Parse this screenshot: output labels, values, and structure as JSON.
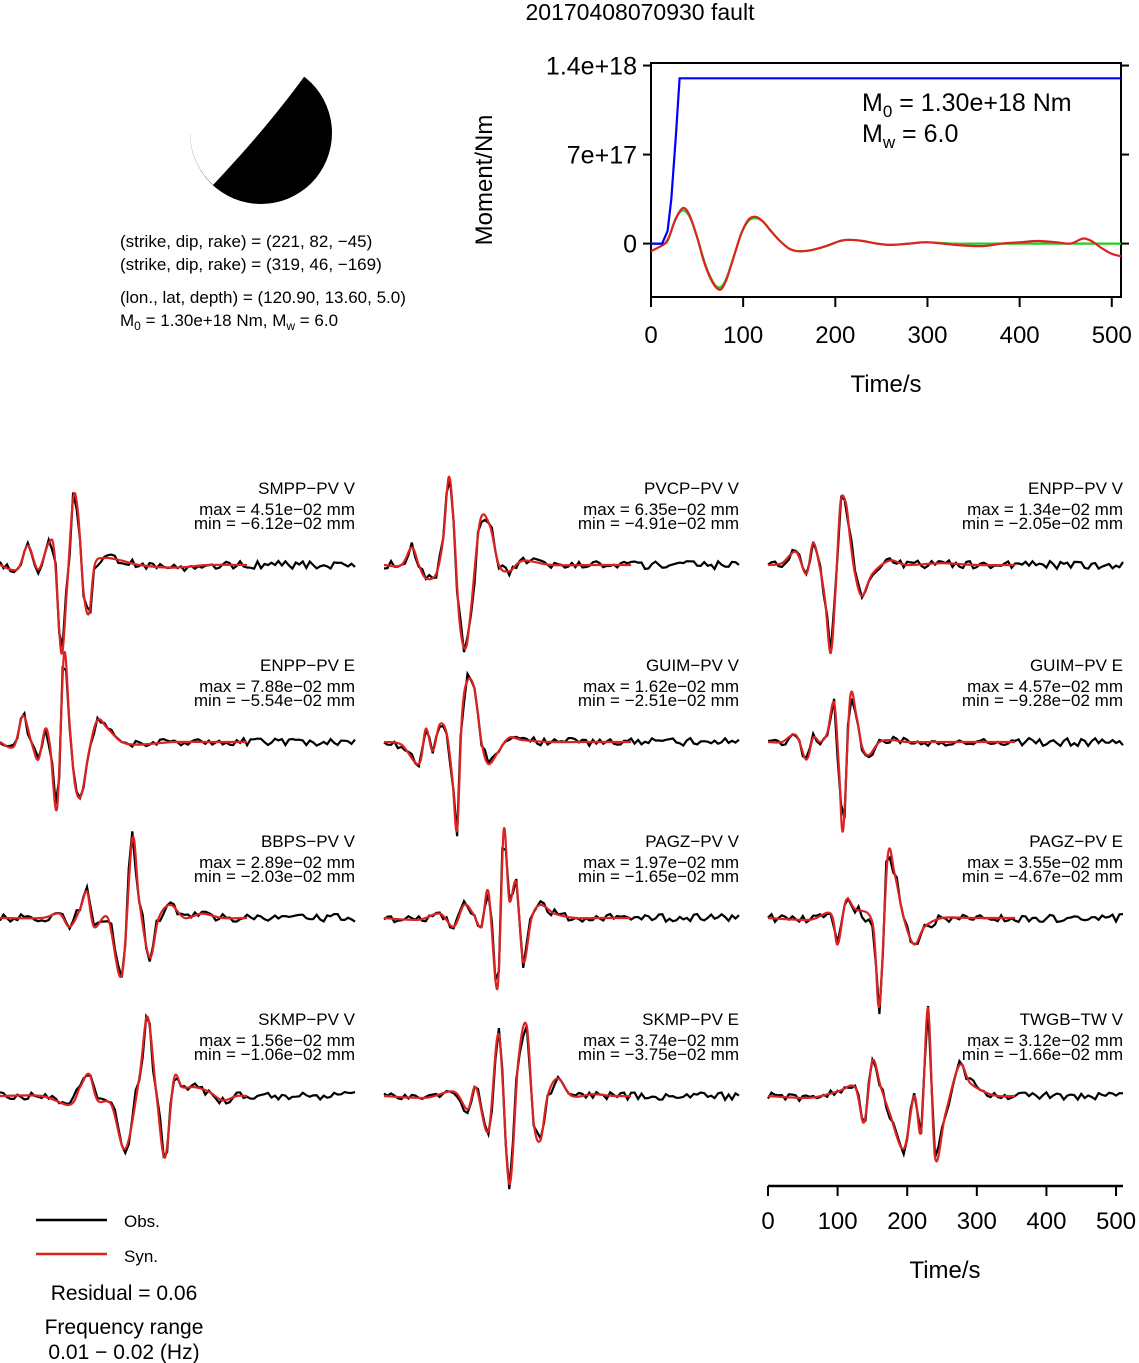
{
  "figure": {
    "title": "20170408070930 fault",
    "mechanism": {
      "line1": "(strike, dip, rake) = (221, 82, −45)",
      "line2": "(strike, dip, rake) = (319, 46, −169)",
      "line3": "(lon., lat, depth) = (120.90, 13.60, 5.0)",
      "m0_prefix": "M",
      "m0_sub": "0",
      "m0_text": " = 1.30e+18 Nm, M",
      "mw_sub": "w",
      "mw_text": " = 6.0"
    },
    "legend": {
      "obs_label": "Obs.",
      "syn_label": "Syn.",
      "residual": "Residual = 0.06",
      "freq_title": "Frequency range",
      "freq_value": "0.01 − 0.02 (Hz)"
    },
    "time_axis_label": "Time/s",
    "time_ticks": [
      "0",
      "100",
      "200",
      "300",
      "400",
      "500"
    ]
  },
  "chart_data": [
    {
      "type": "line",
      "title": "",
      "xlabel": "Time/s",
      "ylabel": "Moment/Nm",
      "xlim": [
        0,
        510
      ],
      "ylim": [
        -4.2e+17,
        1.42e+18
      ],
      "xticks": [
        "0",
        "100",
        "200",
        "300",
        "400",
        "500"
      ],
      "yticks": [
        "1.4e+18",
        "7e+17",
        "0"
      ],
      "ytick_values": [
        1.4e+18,
        7e+17,
        0
      ],
      "annotation": {
        "m0_prefix": "M",
        "m0_sub": "0",
        "m0_text": " = 1.30e+18 Nm",
        "mw_prefix": "M",
        "mw_sub": "w",
        "mw_text": " = 6.0"
      },
      "colors": {
        "moment": "#0000ff",
        "rate_true": "#22cc22",
        "rate_inv": "#dd2222"
      },
      "series": [
        {
          "key": "moment",
          "x": [
            0,
            12,
            18,
            22,
            27,
            31,
            510
          ],
          "y": [
            0,
            0,
            1e+17,
            3.5e+17,
            8.5e+17,
            1.3e+18,
            1.3e+18
          ]
        },
        {
          "key": "rate_true",
          "x": [
            0,
            12,
            18,
            26,
            34,
            42,
            50,
            57,
            63,
            70,
            76,
            82,
            90,
            98,
            106,
            114,
            122,
            130,
            140,
            150,
            160,
            175,
            190,
            205,
            215,
            230,
            245,
            260,
            280,
            300,
            330,
            360,
            400,
            430,
            460,
            480,
            510
          ],
          "y": [
            0,
            0,
            2e+16,
            1.8e+17,
            2.6e+17,
            2.1e+17,
            5e+16,
            -1.2e+17,
            -2.4e+17,
            -3.3e+17,
            -3.4e+17,
            -2.7e+17,
            -1e+17,
            8e+16,
            1.8e+17,
            2e+17,
            1.7e+17,
            1e+17,
            2e+16,
            -4e+16,
            -6e+16,
            -5e+16,
            -2e+16,
            2e+16,
            3e+16,
            2e+16,
            0.0,
            -1e+16,
            0.0,
            1e+16,
            0.0,
            0.0,
            0.0,
            0.0,
            0.0,
            0.0,
            0.0
          ]
        },
        {
          "key": "rate_inv",
          "x": [
            0,
            8,
            15,
            20,
            27,
            35,
            42,
            50,
            57,
            63,
            70,
            76,
            82,
            90,
            98,
            106,
            114,
            122,
            130,
            140,
            150,
            160,
            175,
            190,
            205,
            215,
            230,
            245,
            260,
            280,
            300,
            330,
            360,
            380,
            400,
            420,
            440,
            455,
            465,
            470,
            478,
            490,
            500,
            510
          ],
          "y": [
            -6e+16,
            -3e+16,
            0.0,
            6e+16,
            2e+17,
            2.8e+17,
            2.2e+17,
            5e+16,
            -1.3e+17,
            -2.5e+17,
            -3.4e+17,
            -3.6e+17,
            -2.8e+17,
            -1e+17,
            8e+16,
            1.9e+17,
            2.1e+17,
            1.7e+17,
            1e+17,
            2e+16,
            -4e+16,
            -6e+16,
            -5e+16,
            -2e+16,
            2e+16,
            3e+16,
            2e+16,
            0.0,
            -1e+16,
            0.0,
            1e+16,
            -1e+16,
            -2e+16,
            0.0,
            1e+16,
            2e+16,
            1e+16,
            0.0,
            3e+16,
            4e+16,
            2e+16,
            -4e+16,
            -8e+16,
            -1e+17
          ]
        }
      ]
    },
    {
      "type": "line",
      "xlabel": "Time/s",
      "xlim": [
        0,
        510
      ],
      "obs_color": "#000000",
      "syn_color": "#dd2222",
      "stations": [
        {
          "name": "SMPP−PV V",
          "max": "max = 4.51e−02 mm",
          "min": "min = −6.12e−02 mm",
          "x": [
            0,
            25,
            40,
            55,
            70,
            78,
            88,
            96,
            105,
            112,
            120,
            128,
            136,
            150,
            175,
            200,
            250,
            300,
            355
          ],
          "y": [
            0,
            -0.05,
            0.22,
            -0.05,
            0.25,
            0.15,
            -1.0,
            -0.3,
            0.75,
            0.6,
            -0.3,
            -0.55,
            0.0,
            0.08,
            0.05,
            0.0,
            -0.03,
            0.0,
            0.0
          ]
        },
        {
          "name": "PVCP−PV V",
          "max": "max = 6.35e−02 mm",
          "min": "min = −4.91e−02 mm",
          "x": [
            0,
            25,
            40,
            50,
            60,
            75,
            85,
            93,
            100,
            108,
            117,
            125,
            138,
            152,
            165,
            180,
            200,
            240,
            300,
            355
          ],
          "y": [
            0,
            0.0,
            0.2,
            0.0,
            -0.15,
            -0.1,
            0.3,
            1.0,
            0.5,
            -0.6,
            -0.95,
            -0.5,
            0.5,
            0.45,
            0.0,
            -0.07,
            0.05,
            0.0,
            0.0,
            0.0
          ]
        },
        {
          "name": "ENPP−PV V",
          "max": "max = 1.34e−02 mm",
          "min": "min = −2.05e−02 mm",
          "x": [
            0,
            20,
            40,
            55,
            65,
            75,
            82,
            90,
            97,
            104,
            112,
            118,
            125,
            135,
            150,
            175,
            200,
            250,
            300,
            355
          ],
          "y": [
            0,
            0.02,
            0.15,
            -0.1,
            0.25,
            -0.05,
            -0.4,
            -1.0,
            -0.3,
            0.7,
            0.7,
            0.3,
            -0.1,
            -0.35,
            -0.1,
            0.05,
            0.0,
            0.02,
            0.0,
            0.0
          ]
        },
        {
          "name": "ENPP−PV E",
          "max": "max = 7.88e−02 mm",
          "min": "min = −5.54e−02 mm",
          "x": [
            0,
            20,
            33,
            45,
            55,
            65,
            72,
            82,
            92,
            100,
            108,
            117,
            128,
            140,
            155,
            175,
            200,
            250,
            300,
            355
          ],
          "y": [
            0,
            -0.05,
            0.3,
            0.0,
            -0.2,
            0.15,
            -0.05,
            -0.75,
            1.0,
            0.2,
            -0.5,
            -0.6,
            -0.1,
            0.25,
            0.15,
            0.0,
            -0.03,
            0.0,
            0.0,
            0.0
          ]
        },
        {
          "name": "GUIM−PV V",
          "max": "max = 1.62e−02 mm",
          "min": "min = −2.51e−02 mm",
          "x": [
            0,
            25,
            50,
            60,
            70,
            80,
            90,
            98,
            105,
            112,
            120,
            130,
            140,
            150,
            165,
            180,
            200,
            240,
            300,
            355
          ],
          "y": [
            0,
            -0.03,
            -0.25,
            0.15,
            -0.1,
            0.2,
            0.1,
            -0.4,
            -1.0,
            0.3,
            0.7,
            0.6,
            0.0,
            -0.25,
            -0.1,
            0.05,
            0.02,
            0.0,
            0.0,
            0.0
          ]
        },
        {
          "name": "GUIM−PV E",
          "max": "max = 4.57e−02 mm",
          "min": "min = −9.28e−02 mm",
          "x": [
            0,
            20,
            40,
            55,
            65,
            75,
            85,
            95,
            102,
            108,
            118,
            127,
            135,
            145,
            160,
            180,
            200,
            250,
            300,
            355
          ],
          "y": [
            0,
            0.0,
            0.08,
            -0.2,
            0.05,
            0.0,
            0.1,
            0.45,
            -0.3,
            -1.0,
            0.5,
            0.3,
            -0.05,
            -0.15,
            0.0,
            0.02,
            0.0,
            0.0,
            0.0,
            0.0
          ]
        },
        {
          "name": "BBPS−PV V",
          "max": "max = 2.89e−02 mm",
          "min": "min = −2.03e−02 mm",
          "x": [
            0,
            60,
            85,
            100,
            115,
            125,
            135,
            155,
            175,
            190,
            200,
            215,
            228,
            245,
            265,
            290,
            320,
            355
          ],
          "y": [
            0,
            0.0,
            0.05,
            -0.1,
            0.1,
            0.3,
            -0.1,
            0.0,
            -0.65,
            0.9,
            0.2,
            -0.45,
            0.0,
            0.15,
            0.0,
            0.05,
            0.0,
            0.0
          ]
        },
        {
          "name": "PAGZ−PV V",
          "max": "max = 1.97e−02 mm",
          "min": "min = −1.65e−02 mm",
          "x": [
            0,
            50,
            80,
            100,
            115,
            128,
            140,
            150,
            163,
            172,
            180,
            190,
            200,
            212,
            225,
            245,
            275,
            310,
            355
          ],
          "y": [
            0,
            -0.02,
            0.05,
            -0.1,
            0.15,
            0.05,
            -0.1,
            0.3,
            -0.8,
            1.0,
            0.2,
            0.4,
            -0.5,
            0.0,
            0.15,
            0.05,
            0.0,
            0.0,
            0.0
          ]
        },
        {
          "name": "PAGZ−PV E",
          "max": "max = 3.55e−02 mm",
          "min": "min = −4.67e−02 mm",
          "x": [
            0,
            60,
            90,
            100,
            112,
            125,
            150,
            160,
            172,
            182,
            195,
            210,
            225,
            250,
            290,
            320,
            355
          ],
          "y": [
            0,
            -0.02,
            0.05,
            -0.3,
            0.2,
            0.1,
            -0.05,
            -1.0,
            0.7,
            0.5,
            0.0,
            -0.3,
            -0.1,
            0.0,
            0.0,
            0.0,
            0.0
          ]
        },
        {
          "name": "SKMP−PV V",
          "max": "max = 1.56e−02 mm",
          "min": "min = −1.06e−02 mm",
          "x": [
            0,
            60,
            100,
            115,
            128,
            140,
            160,
            180,
            200,
            212,
            225,
            237,
            250,
            262,
            280,
            300,
            320,
            340,
            355
          ],
          "y": [
            0,
            0.0,
            -0.1,
            0.1,
            0.25,
            -0.05,
            -0.1,
            -0.6,
            0.2,
            0.9,
            0.0,
            -0.7,
            0.2,
            0.1,
            0.1,
            0.05,
            -0.05,
            0.0,
            0.0
          ]
        },
        {
          "name": "SKMP−PV E",
          "max": "max = 3.74e−02 mm",
          "min": "min = −3.75e−02 mm",
          "x": [
            0,
            60,
            100,
            120,
            132,
            150,
            165,
            180,
            193,
            205,
            215,
            225,
            235,
            250,
            270,
            300,
            330,
            355
          ],
          "y": [
            0,
            -0.02,
            0.05,
            -0.15,
            0.1,
            -0.4,
            0.7,
            -1.0,
            0.4,
            0.8,
            -0.3,
            -0.5,
            0.0,
            0.2,
            0.0,
            0.02,
            0.0,
            0.0
          ]
        },
        {
          "name": "TWGB−TW V",
          "max": "max = 3.12e−02 mm",
          "min": "min = −1.66e−02 mm",
          "x": [
            0,
            60,
            100,
            125,
            138,
            150,
            162,
            175,
            195,
            210,
            220,
            230,
            240,
            255,
            275,
            290,
            310,
            330,
            355
          ],
          "y": [
            0,
            -0.02,
            0.05,
            0.1,
            -0.3,
            0.4,
            0.1,
            -0.2,
            -0.6,
            0.0,
            -0.4,
            1.0,
            -0.7,
            -0.2,
            0.35,
            0.15,
            0.05,
            0.0,
            0.0
          ]
        }
      ]
    }
  ]
}
